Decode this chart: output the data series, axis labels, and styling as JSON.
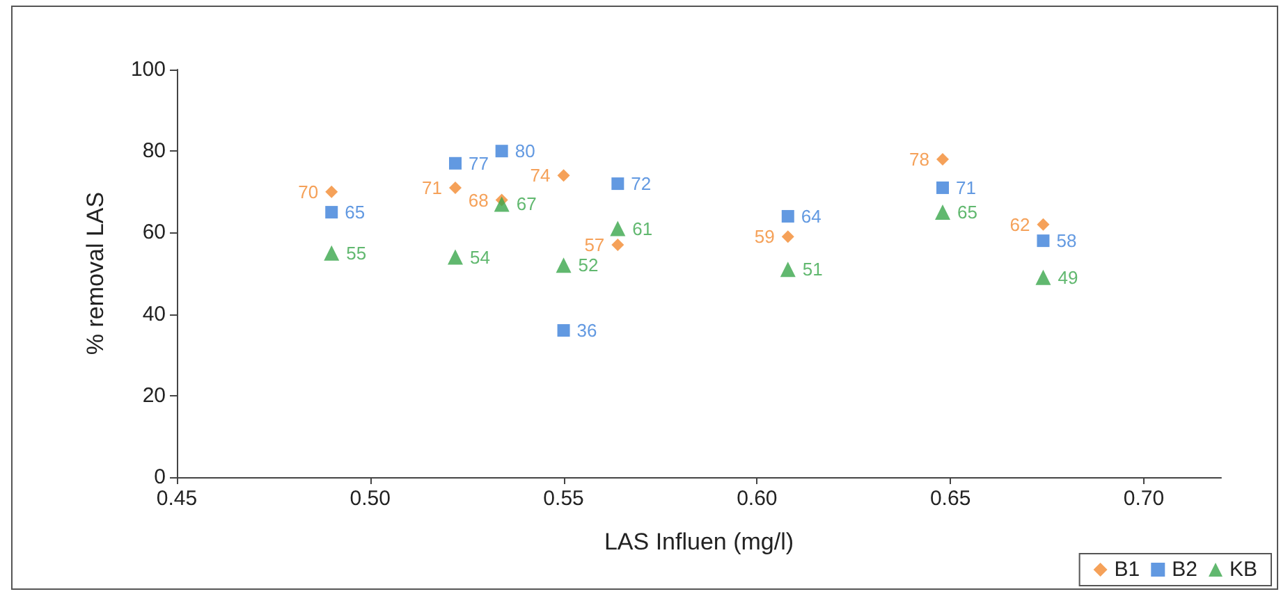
{
  "chart_data": {
    "type": "scatter",
    "xlabel": "LAS Influen (mg/l)",
    "ylabel": "% removal LAS",
    "x": [
      0.49,
      0.522,
      0.534,
      0.55,
      0.564,
      0.608,
      0.648,
      0.674
    ],
    "series": [
      {
        "name": "B1",
        "color": "#f28a30",
        "marker": "diamond",
        "values": [
          70,
          71,
          68,
          74,
          57,
          59,
          78,
          62
        ]
      },
      {
        "name": "B2",
        "color": "#3b7fd9",
        "marker": "square",
        "values": [
          65,
          77,
          80,
          36,
          72,
          64,
          71,
          58
        ]
      },
      {
        "name": "KB",
        "color": "#3aa64b",
        "marker": "triangle",
        "values": [
          55,
          54,
          67,
          52,
          61,
          51,
          65,
          49
        ]
      }
    ],
    "data_labels": true,
    "xlim": [
      0.45,
      0.72
    ],
    "xticks": [
      0.45,
      {
        "value": 0.5,
        "label": "0.50"
      },
      0.55,
      {
        "value": 0.6,
        "label": "0.60"
      },
      0.65,
      {
        "value": 0.7,
        "label": "0.70"
      }
    ],
    "ylim": [
      0,
      100
    ],
    "yticks": [
      0,
      20,
      40,
      60,
      80,
      100
    ],
    "grid": false,
    "legend": "bottom right"
  }
}
